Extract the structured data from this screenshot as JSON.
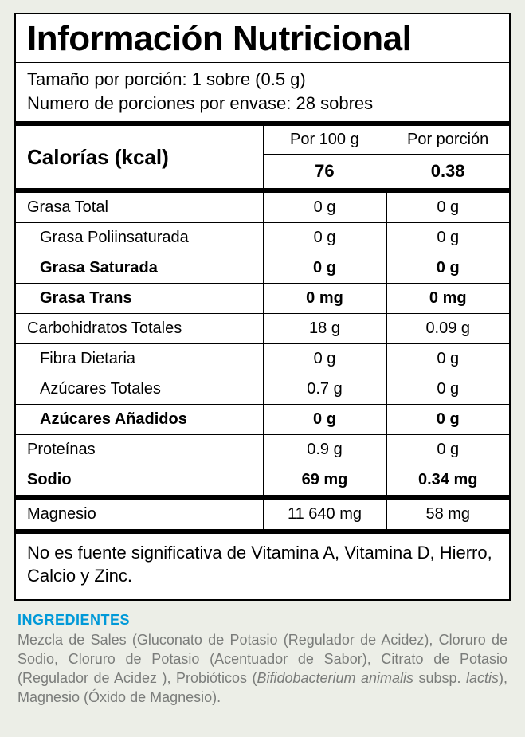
{
  "title": "Información Nutricional",
  "serving_size_label": "Tamaño por porción: 1 sobre (0.5 g)",
  "servings_per_container_label": "Numero de porciones por envase: 28 sobres",
  "calories": {
    "label": "Calorías (kcal)",
    "col_per100g": "Por 100 g",
    "col_perserv": "Por porción",
    "val_per100g": "76",
    "val_perserv": "0.38"
  },
  "rows": [
    {
      "name": "Grasa Total",
      "per100g": "0 g",
      "perserv": "0 g",
      "indent": 0,
      "bold": false
    },
    {
      "name": "Grasa Poliinsaturada",
      "per100g": "0 g",
      "perserv": "0 g",
      "indent": 1,
      "bold": false
    },
    {
      "name": "Grasa Saturada",
      "per100g": "0 g",
      "perserv": "0 g",
      "indent": 1,
      "bold": true
    },
    {
      "name": "Grasa Trans",
      "per100g": "0 mg",
      "perserv": "0 mg",
      "indent": 1,
      "bold": true
    },
    {
      "name": "Carbohidratos Totales",
      "per100g": "18 g",
      "perserv": "0.09 g",
      "indent": 0,
      "bold": false
    },
    {
      "name": "Fibra Dietaria",
      "per100g": "0 g",
      "perserv": "0 g",
      "indent": 1,
      "bold": false
    },
    {
      "name": "Azúcares Totales",
      "per100g": "0.7 g",
      "perserv": "0 g",
      "indent": 1,
      "bold": false
    },
    {
      "name": "Azúcares Añadidos",
      "per100g": "0 g",
      "perserv": "0 g",
      "indent": 1,
      "bold": true
    },
    {
      "name": "Proteínas",
      "per100g": "0.9 g",
      "perserv": "0 g",
      "indent": 0,
      "bold": false
    },
    {
      "name": "Sodio",
      "per100g": "69 mg",
      "perserv": "0.34 mg",
      "indent": 0,
      "bold": true,
      "thickAfter": true
    },
    {
      "name": "Magnesio",
      "per100g": "11 640 mg",
      "perserv": "58 mg",
      "indent": 0,
      "bold": false,
      "thickAfter": true
    }
  ],
  "disclaimer": "No es fuente significativa de Vitamina A, Vitamina D, Hierro, Calcio y Zinc.",
  "ingredients": {
    "title": "INGREDIENTES",
    "body_html": "Mezcla de Sales (Gluconato de Potasio (Regulador de Acidez), Cloruro de Sodio, Cloruro de Potasio (Acentuador de Sabor), Citrato de Potasio (Regulador de Acidez ), Probióticos (<em>Bifidobacterium animalis</em> subsp. <em>lactis</em>), Magnesio (Óxido de Magnesio)."
  },
  "colors": {
    "page_bg": "#eceee7",
    "panel_bg": "#ffffff",
    "border": "#000000",
    "ing_title": "#0099d8",
    "ing_body": "#7a7c7a"
  }
}
